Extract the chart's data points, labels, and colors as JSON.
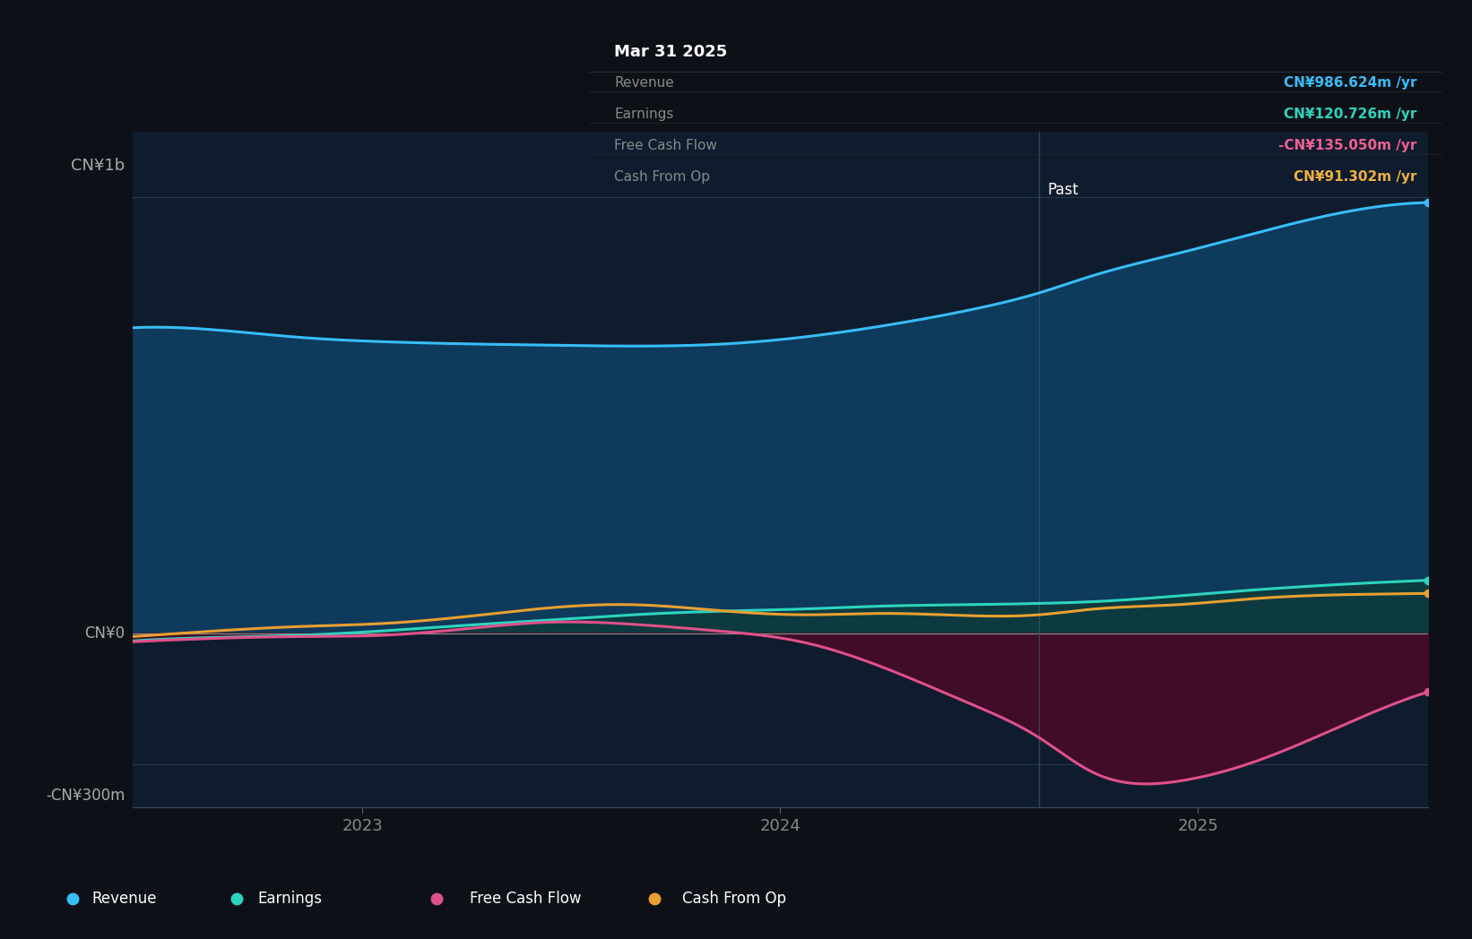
{
  "bg_color": "#0d1117",
  "plot_bg_color": "#0e1c2e",
  "ylabel_top": "CN¥1b",
  "ylabel_bottom": "-CN¥300m",
  "ylabel_zero": "CN¥0",
  "x_ticks": [
    2023,
    2024,
    2025
  ],
  "x_range": [
    2022.45,
    2025.55
  ],
  "y_range": [
    -400,
    1150
  ],
  "divider_x": 2024.62,
  "past_label": "Past",
  "tooltip": {
    "date": "Mar 31 2025",
    "revenue_label": "Revenue",
    "revenue_value": "CN¥986.624m /yr",
    "earnings_label": "Earnings",
    "earnings_value": "CN¥120.726m /yr",
    "fcf_label": "Free Cash Flow",
    "fcf_value": "-CN¥135.050m /yr",
    "cfo_label": "Cash From Op",
    "cfo_value": "CN¥91.302m /yr",
    "revenue_color": "#38bdf8",
    "earnings_color": "#2dd4bf",
    "fcf_color": "#f06090",
    "cfo_color": "#f0b040"
  },
  "revenue_color": "#38bdf8",
  "earnings_color": "#2dd4bf",
  "fcf_color": "#e0508a",
  "cfo_color": "#e8a030",
  "revenue_fill": "#0e3a5c",
  "earnings_fill": "#0e3a3a",
  "fcf_fill_neg": "#4a0a28",
  "revenue_x": [
    2022.45,
    2022.65,
    2022.85,
    2023.05,
    2023.25,
    2023.45,
    2023.65,
    2023.85,
    2024.05,
    2024.25,
    2024.45,
    2024.62,
    2024.75,
    2024.95,
    2025.15,
    2025.35,
    2025.55
  ],
  "revenue_y": [
    700,
    695,
    678,
    668,
    663,
    660,
    658,
    662,
    678,
    705,
    740,
    780,
    820,
    870,
    920,
    965,
    987
  ],
  "earnings_x": [
    2022.45,
    2022.65,
    2022.85,
    2023.05,
    2023.25,
    2023.45,
    2023.65,
    2023.85,
    2024.05,
    2024.25,
    2024.45,
    2024.62,
    2024.75,
    2024.95,
    2025.15,
    2025.35,
    2025.55
  ],
  "earnings_y": [
    -18,
    -10,
    -5,
    5,
    18,
    30,
    42,
    50,
    55,
    62,
    65,
    68,
    72,
    85,
    100,
    112,
    121
  ],
  "fcf_x": [
    2022.45,
    2022.65,
    2022.85,
    2023.05,
    2023.25,
    2023.45,
    2023.65,
    2023.85,
    2024.05,
    2024.25,
    2024.45,
    2024.62,
    2024.75,
    2024.95,
    2025.15,
    2025.35,
    2025.55
  ],
  "fcf_y": [
    -20,
    -12,
    -8,
    -5,
    10,
    25,
    20,
    5,
    -20,
    -80,
    -160,
    -240,
    -320,
    -340,
    -290,
    -210,
    -135
  ],
  "cfo_x": [
    2022.45,
    2022.65,
    2022.85,
    2023.05,
    2023.25,
    2023.45,
    2023.65,
    2023.85,
    2024.05,
    2024.25,
    2024.45,
    2024.62,
    2024.75,
    2024.95,
    2025.15,
    2025.35,
    2025.55
  ],
  "cfo_y": [
    -8,
    5,
    15,
    22,
    38,
    58,
    65,
    52,
    42,
    45,
    40,
    42,
    55,
    65,
    80,
    88,
    91
  ],
  "legend": [
    {
      "label": "Revenue",
      "color": "#38bdf8"
    },
    {
      "label": "Earnings",
      "color": "#2dd4bf"
    },
    {
      "label": "Free Cash Flow",
      "color": "#e0508a"
    },
    {
      "label": "Cash From Op",
      "color": "#e8a030"
    }
  ]
}
